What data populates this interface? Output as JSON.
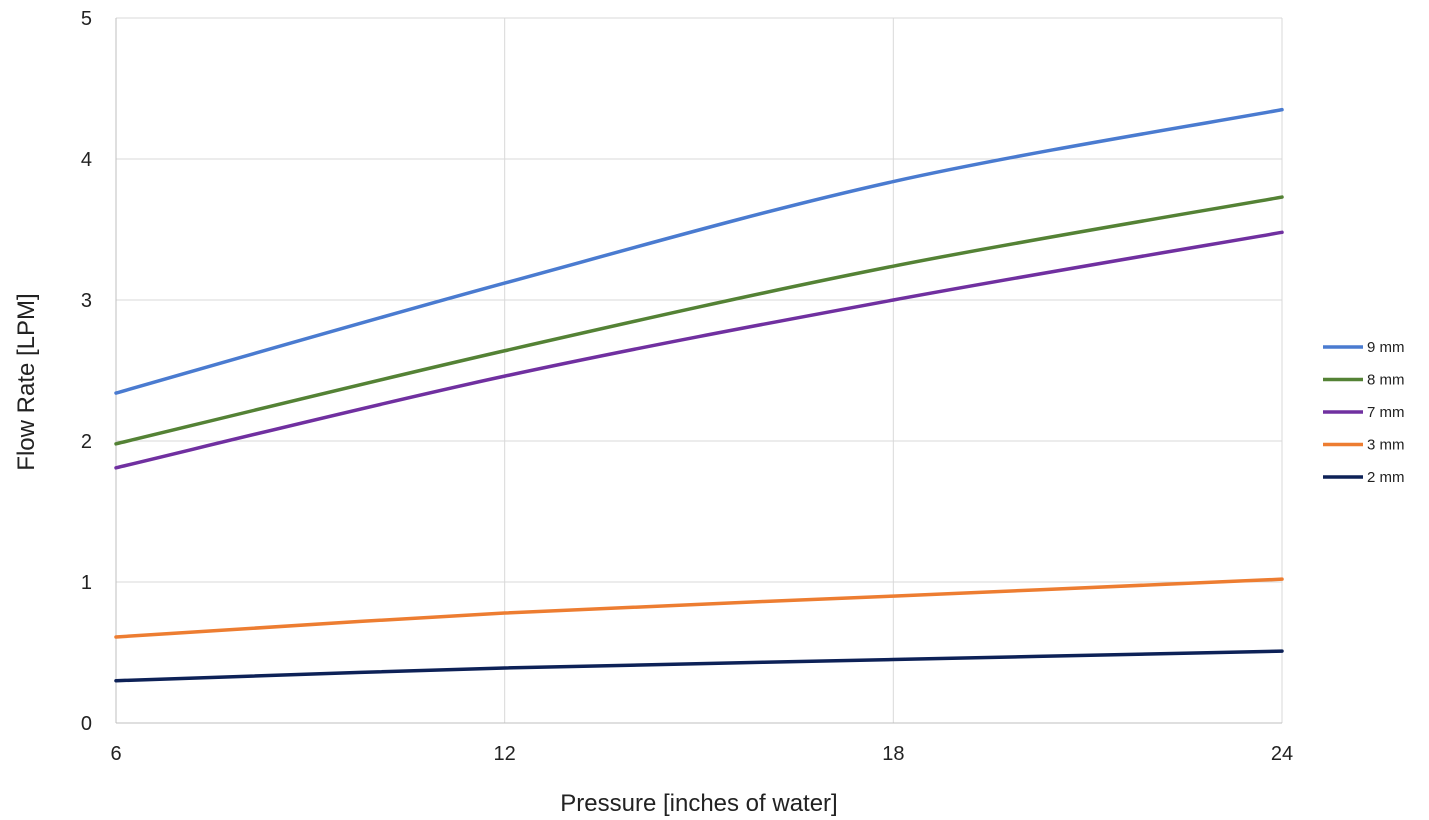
{
  "chart_data": {
    "type": "line",
    "title": "",
    "xlabel": "Pressure [inches of water]",
    "ylabel": "Flow Rate [LPM]",
    "xlim": [
      6,
      24
    ],
    "ylim": [
      0,
      5
    ],
    "xticks": [
      "6",
      "12",
      "18",
      "24"
    ],
    "yticks": [
      "0",
      "1",
      "2",
      "3",
      "4",
      "5"
    ],
    "grid": true,
    "legend_position": "right",
    "x": [
      6,
      12,
      18,
      24
    ],
    "series": [
      {
        "name": "9 mm",
        "color": "#4a7bd0",
        "values": [
          2.34,
          3.12,
          3.84,
          4.35
        ]
      },
      {
        "name": "8 mm",
        "color": "#548235",
        "values": [
          1.98,
          2.64,
          3.24,
          3.73
        ]
      },
      {
        "name": "7 mm",
        "color": "#7030a0",
        "values": [
          1.81,
          2.46,
          3.0,
          3.48
        ]
      },
      {
        "name": "3 mm",
        "color": "#ed7d31",
        "values": [
          0.61,
          0.78,
          0.9,
          1.02
        ]
      },
      {
        "name": "2 mm",
        "color": "#0d2157",
        "values": [
          0.3,
          0.39,
          0.45,
          0.51
        ]
      }
    ]
  }
}
